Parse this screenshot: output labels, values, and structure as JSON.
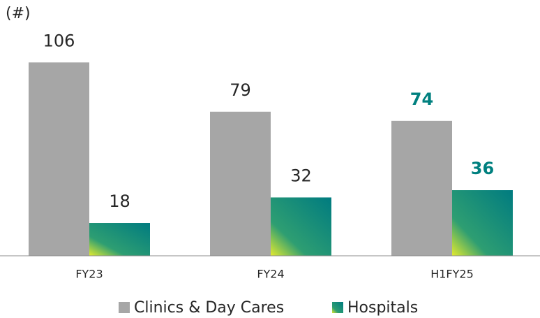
{
  "chart_data": {
    "type": "bar",
    "ylabel": "(#)",
    "categories": [
      "FY23",
      "FY24",
      "H1FY25"
    ],
    "series": [
      {
        "name": "Clinics & Day Cares",
        "color": "#a6a6a6",
        "values": [
          106,
          79,
          74
        ]
      },
      {
        "name": "Hospitals",
        "color": "#2e9e72",
        "values": [
          18,
          32,
          36
        ]
      }
    ],
    "legend": "bottom"
  }
}
